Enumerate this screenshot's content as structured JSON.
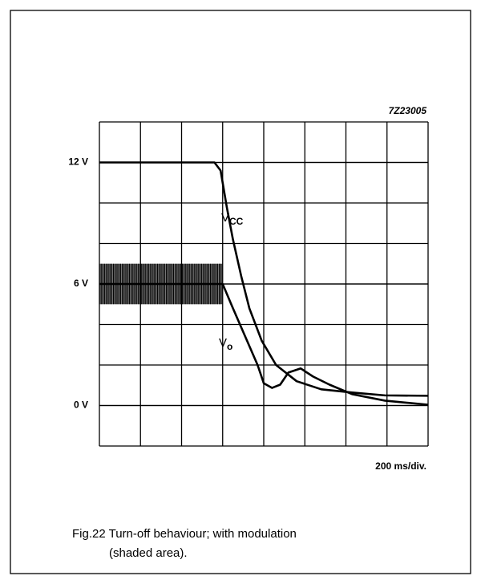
{
  "chart_data": {
    "type": "line",
    "code": "7Z23005",
    "x_label": "200 ms/div.",
    "caption": [
      "Fig.22  Turn-off behaviour; with modulation",
      "(shaded area)."
    ],
    "xlim": [
      0,
      1600
    ],
    "ylim": [
      -2,
      14
    ],
    "yticks": [
      {
        "value": 0,
        "label": "0 V"
      },
      {
        "value": 6,
        "label": "6 V"
      },
      {
        "value": 12,
        "label": "12 V"
      }
    ],
    "grid": true,
    "shaded_area": {
      "x": [
        0,
        600
      ],
      "y": [
        5,
        7
      ]
    },
    "series": [
      {
        "name": "V",
        "subscript": "CC",
        "color": "#000000",
        "x": [
          0,
          560,
          590,
          620,
          650,
          690,
          730,
          790,
          860,
          960,
          1080,
          1230,
          1390,
          1600
        ],
        "values": [
          12,
          12,
          11.6,
          9.8,
          8.2,
          6.4,
          4.8,
          3.2,
          2.0,
          1.2,
          0.8,
          0.64,
          0.5,
          0.48
        ]
      },
      {
        "name": "V",
        "subscript": "o",
        "color": "#000000",
        "x": [
          0,
          600,
          650,
          710,
          770,
          800,
          840,
          880,
          920,
          980,
          1040,
          1120,
          1230,
          1390,
          1600
        ],
        "values": [
          6,
          6,
          4.8,
          3.4,
          2.0,
          1.1,
          0.87,
          1.03,
          1.63,
          1.83,
          1.43,
          1.03,
          0.56,
          0.24,
          0.04
        ]
      }
    ]
  }
}
